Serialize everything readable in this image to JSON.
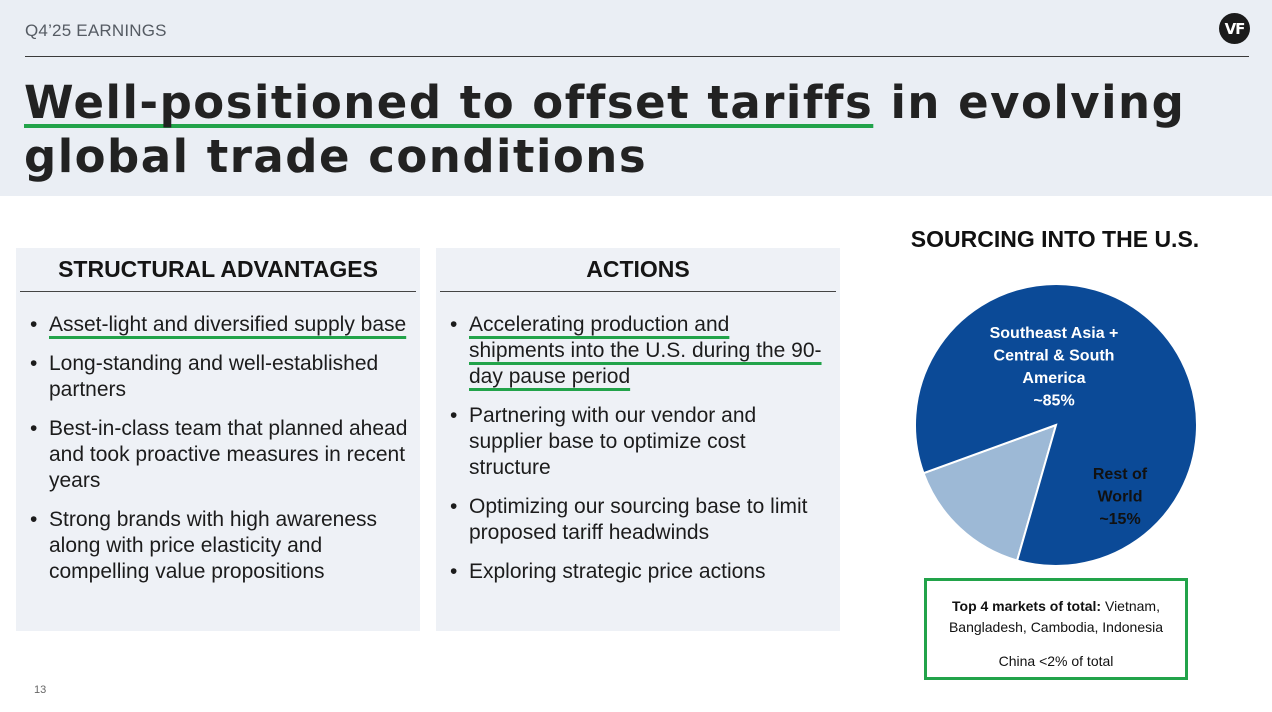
{
  "header": {
    "section_label": "Q4’25 EARNINGS",
    "logo_text": "VF",
    "title_highlight": "Well-positioned to offset tariffs",
    "title_rest": " in evolving global trade conditions"
  },
  "structural": {
    "heading": "STRUCTURAL ADVANTAGES",
    "items": [
      "Asset-light and diversified supply base",
      "Long-standing and well-established partners",
      "Best-in-class team that planned ahead and took proactive measures in recent years",
      "Strong brands with high awareness along with price elasticity and compelling value propositions"
    ]
  },
  "actions": {
    "heading": "ACTIONS",
    "items": [
      "Accelerating production and shipments into the U.S. during the 90-day pause period",
      "Partnering with our vendor and supplier base to optimize cost structure",
      "Optimizing our sourcing base to limit proposed tariff headwinds",
      "Exploring strategic price actions"
    ]
  },
  "chart_data": {
    "type": "pie",
    "title": "SOURCING INTO THE U.S.",
    "slices": [
      {
        "label_lines": [
          "Southeast Asia +",
          "Central & South",
          "America",
          "~85%"
        ],
        "value": 85,
        "color": "#0b4a97"
      },
      {
        "label_lines": [
          "Rest of",
          "World",
          "~15%"
        ],
        "value": 15,
        "color": "#9db9d6"
      }
    ]
  },
  "callout": {
    "bold": "Top 4 markets of total:",
    "text": " Vietnam, Bangladesh, Cambodia, Indonesia",
    "note": "China <2% of total"
  },
  "footer": {
    "page_number": "13"
  }
}
